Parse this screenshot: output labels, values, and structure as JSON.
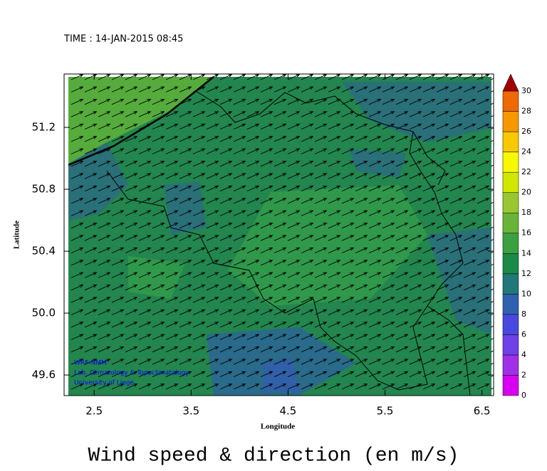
{
  "chart_data": {
    "type": "map",
    "time_label": "TIME : 14-JAN-2015 08:45",
    "title": "Wind speed & direction (en m/s)",
    "xlabel": "Longitude",
    "ylabel": "Latitude",
    "credits": [
      "WRF-NMM",
      "Lab. Climatology & Topoclimatology",
      "University of Liege"
    ],
    "xlim": [
      2.19,
      6.62
    ],
    "ylim": [
      49.467,
      51.545
    ],
    "xticks": [
      2.5,
      3.5,
      4.5,
      5.5,
      6.5
    ],
    "yticks": [
      {
        "value": 49.6,
        "label": "49.6"
      },
      {
        "value": 50,
        "label": "50.0"
      },
      {
        "value": 50.4,
        "label": "50.4"
      },
      {
        "value": 50.8,
        "label": "50.8"
      },
      {
        "value": 51.2,
        "label": "51.2"
      }
    ],
    "colorbar": {
      "levels": [
        0,
        2,
        4,
        6,
        8,
        10,
        12,
        14,
        16,
        18,
        20,
        22,
        24,
        26,
        28,
        30
      ],
      "colors": [
        "#d800f0",
        "#a030e8",
        "#7040e8",
        "#4848e0",
        "#3060b0",
        "#207878",
        "#1a8a48",
        "#3aa040",
        "#68b438",
        "#98c830",
        "#d0e800",
        "#f8f800",
        "#f8c800",
        "#f89800",
        "#f06800",
        "#e82000"
      ],
      "extend_color": "#a00000"
    }
  }
}
